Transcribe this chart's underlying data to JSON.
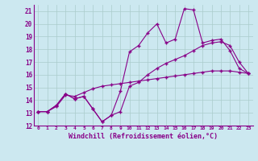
{
  "title": "Windchill (Refroidissement éolien,°C)",
  "x_labels": [
    "0",
    "1",
    "2",
    "3",
    "4",
    "5",
    "6",
    "7",
    "8",
    "9",
    "10",
    "11",
    "12",
    "13",
    "14",
    "15",
    "16",
    "17",
    "18",
    "19",
    "20",
    "21",
    "22",
    "23"
  ],
  "ylim": [
    12,
    21.5
  ],
  "yticks": [
    12,
    13,
    14,
    15,
    16,
    17,
    18,
    19,
    20,
    21
  ],
  "line1": [
    13.1,
    13.1,
    13.6,
    14.5,
    14.1,
    14.3,
    13.3,
    12.3,
    12.8,
    14.7,
    17.8,
    18.3,
    19.3,
    20.0,
    18.5,
    18.8,
    21.2,
    21.1,
    18.5,
    18.7,
    18.8,
    17.9,
    16.5,
    16.1
  ],
  "line2": [
    13.1,
    13.1,
    13.6,
    14.5,
    14.1,
    14.3,
    13.3,
    12.3,
    12.8,
    13.1,
    15.1,
    15.4,
    16.0,
    16.5,
    16.9,
    17.2,
    17.5,
    17.9,
    18.3,
    18.5,
    18.6,
    18.3,
    17.0,
    16.1
  ],
  "line3": [
    13.1,
    13.1,
    13.5,
    14.4,
    14.3,
    14.6,
    14.9,
    15.1,
    15.2,
    15.3,
    15.4,
    15.5,
    15.6,
    15.7,
    15.8,
    15.9,
    16.0,
    16.1,
    16.2,
    16.3,
    16.3,
    16.3,
    16.2,
    16.1
  ],
  "line_color": "#880088",
  "bg_color": "#cce8f0",
  "grid_color": "#aacccc"
}
